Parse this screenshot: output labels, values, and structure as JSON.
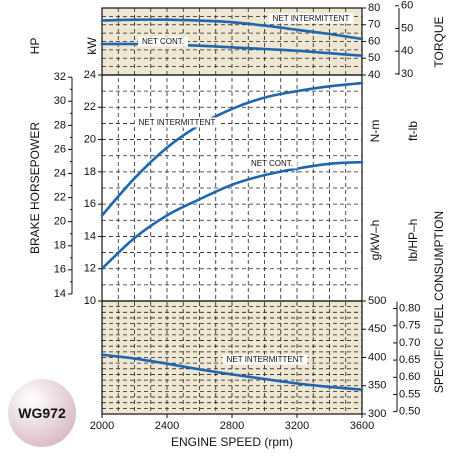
{
  "colors": {
    "panel_fill": "#eee7d1",
    "grid": "#222222",
    "curve": "#1d66b0",
    "badge_light": "#ffffff",
    "badge_dark": "#d9b9c7"
  },
  "badge": {
    "model": "WG972"
  },
  "chart_data": {
    "type": "line",
    "x_axis": {
      "label": "ENGINE SPEED (rpm)",
      "ticks": [
        2000,
        2400,
        2800,
        3200,
        3600
      ],
      "tick_labels": [
        "2000",
        "2400",
        "2800",
        "3200",
        "3600"
      ],
      "xlim": [
        2000,
        3600
      ]
    },
    "panels": [
      {
        "id": "torque",
        "title": "TORQUE",
        "units_left": "N-m",
        "units_right": "ft-lb",
        "y_ticks_left": [
          40,
          50,
          60,
          70,
          80
        ],
        "y_ticks_right": [
          30,
          40,
          50,
          60
        ],
        "y_tick_labels_left": [
          "40",
          "50",
          "60",
          "70",
          "80"
        ],
        "y_tick_labels_right": [
          "30",
          "40",
          "50",
          "60"
        ],
        "ylim_left": [
          40,
          80
        ],
        "series": [
          {
            "name": "NET INTERMITTENT",
            "x": [
              2000,
              2200,
              2400,
              2600,
              2800,
              3000,
              3200,
              3400,
              3600
            ],
            "y": [
              72.5,
              73.0,
              73.0,
              72.5,
              71.5,
              69.5,
              67.0,
              64.5,
              61.5
            ]
          },
          {
            "name": "NET CONT.",
            "x": [
              2000,
              2200,
              2400,
              2600,
              2800,
              3000,
              3200,
              3400,
              3600
            ],
            "y": [
              58.5,
              58.5,
              58.0,
              57.5,
              56.5,
              55.5,
              54.5,
              53.0,
              51.5
            ]
          }
        ]
      },
      {
        "id": "power",
        "title": "BRAKE HORSEPOWER",
        "units_hp": "HP",
        "units_kw": "kW",
        "y_ticks_kw": [
          10,
          12,
          14,
          16,
          18,
          20,
          22,
          24
        ],
        "y_tick_labels_kw": [
          "10",
          "12",
          "14",
          "16",
          "18",
          "20",
          "22",
          "24"
        ],
        "y_ticks_hp": [
          14,
          16,
          18,
          20,
          22,
          24,
          26,
          28,
          30,
          32
        ],
        "y_tick_labels_hp": [
          "14",
          "16",
          "18",
          "20",
          "22",
          "24",
          "26",
          "28",
          "30",
          "32"
        ],
        "ylim_kw": [
          10,
          24
        ],
        "series": [
          {
            "name": "NET INTERMITTENT",
            "x": [
              2000,
              2200,
              2400,
              2600,
              2800,
              3000,
              3200,
              3400,
              3600
            ],
            "y": [
              15.3,
              17.6,
              19.5,
              20.9,
              21.9,
              22.6,
              23.0,
              23.3,
              23.5
            ]
          },
          {
            "name": "NET CONT.",
            "x": [
              2000,
              2200,
              2400,
              2600,
              2800,
              3000,
              3200,
              3400,
              3600
            ],
            "y": [
              12.0,
              13.9,
              15.3,
              16.3,
              17.2,
              17.8,
              18.2,
              18.5,
              18.6
            ]
          }
        ]
      },
      {
        "id": "fuel",
        "title": "SPECIFIC FUEL CONSUMPTION",
        "units_left": "g/kW–h",
        "units_right": "lb/HP–h",
        "y_ticks_left": [
          300,
          350,
          400,
          450,
          500
        ],
        "y_tick_labels_left": [
          "300",
          "350",
          "400",
          "450",
          "500"
        ],
        "y_ticks_right": [
          0.5,
          0.55,
          0.6,
          0.65,
          0.7,
          0.75,
          0.8
        ],
        "y_tick_labels_right": [
          "0.50",
          "0.55",
          "0.60",
          "0.65",
          "0.70",
          "0.75",
          "0.80"
        ],
        "ylim_left": [
          300,
          500
        ],
        "series": [
          {
            "name": "NET INTERMITTENT",
            "x": [
              2000,
              2200,
              2400,
              2600,
              2800,
              3000,
              3200,
              3400,
              3600
            ],
            "y": [
              405,
              398,
              389,
              379,
              370,
              362,
              354,
              348,
              343
            ]
          }
        ]
      }
    ]
  }
}
